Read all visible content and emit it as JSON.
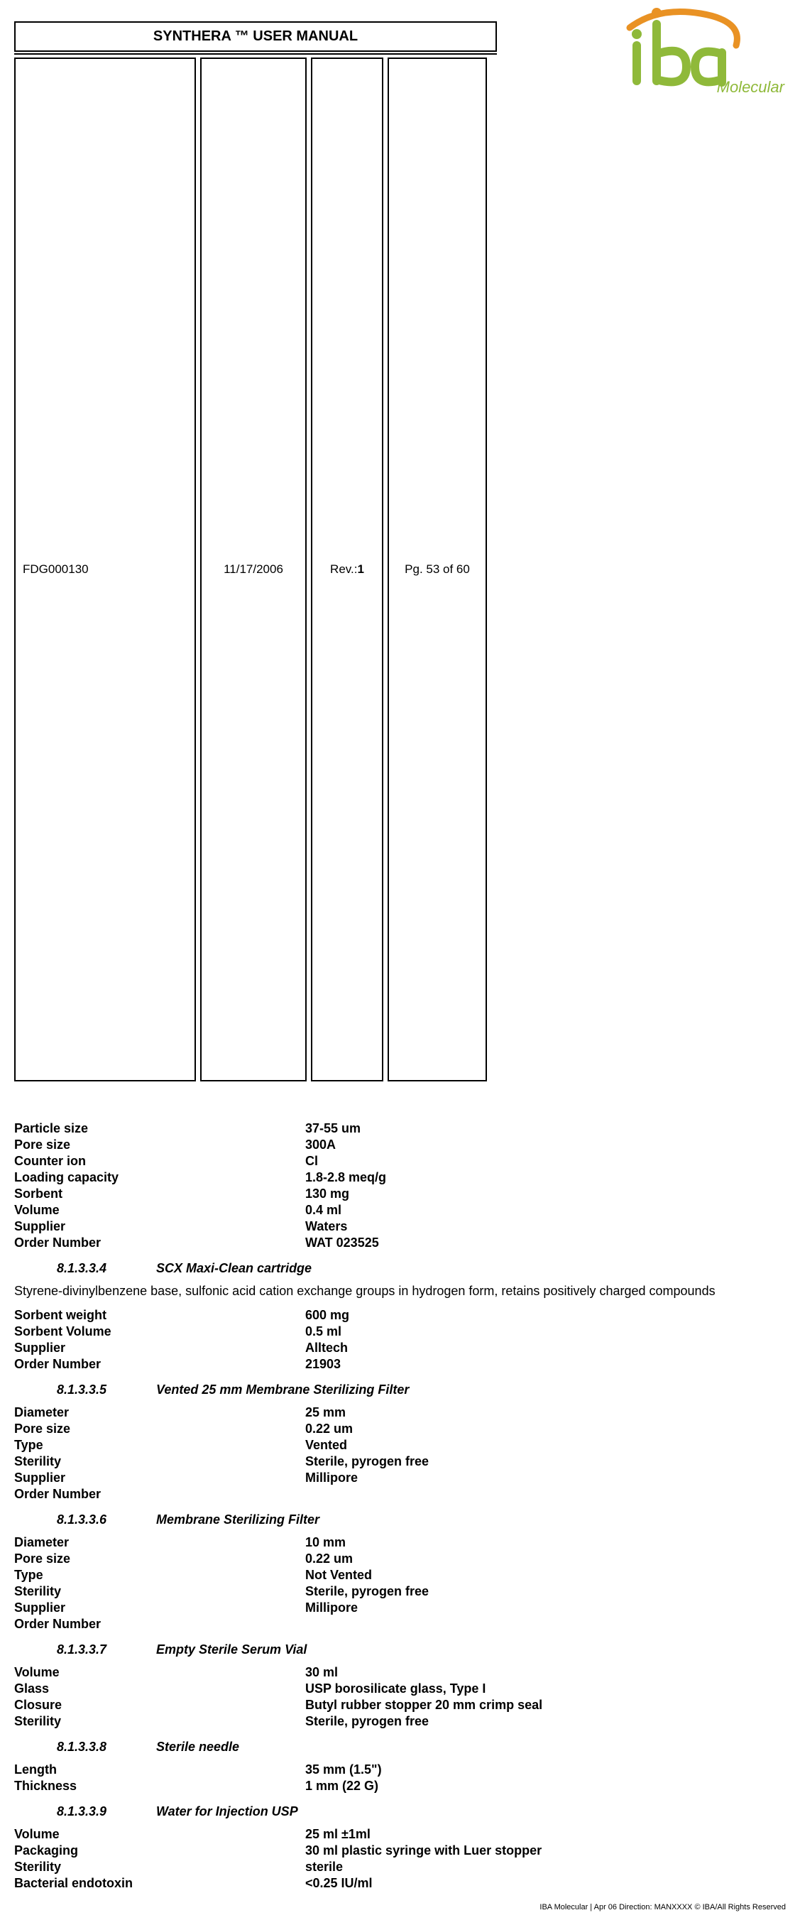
{
  "header": {
    "title": "SYNTHERA ™ USER MANUAL",
    "doc_number": "FDG000130",
    "date": "11/17/2006",
    "rev_label": "Rev.: ",
    "rev_number": "1",
    "page_label": "Pg. 53 of 60"
  },
  "logo": {
    "brand_word": "iba",
    "subtext": "Molecular",
    "swirl_color": "#e99224",
    "letter_color": "#8fb93a"
  },
  "sections": [
    {
      "specs": [
        {
          "label": "Particle size",
          "value": "37-55 um"
        },
        {
          "label": "Pore size",
          "value": "300A"
        },
        {
          "label": "Counter ion",
          "value": "Cl"
        },
        {
          "label": "Loading capacity",
          "value": "1.8-2.8 meq/g"
        },
        {
          "label": "Sorbent",
          "value": "130 mg"
        },
        {
          "label": "Volume",
          "value": "0.4 ml"
        },
        {
          "label": "Supplier",
          "value": "Waters"
        },
        {
          "label": "Order Number",
          "value": "WAT 023525"
        }
      ]
    },
    {
      "heading_num": "8.1.3.3.4",
      "heading_title": "SCX Maxi-Clean cartridge",
      "paragraph": "Styrene-divinylbenzene base, sulfonic acid cation exchange groups in hydrogen form, retains positively charged compounds",
      "specs": [
        {
          "label": "Sorbent weight",
          "value": "600 mg"
        },
        {
          "label": "Sorbent Volume",
          "value": "0.5 ml"
        },
        {
          "label": "Supplier",
          "value": "Alltech"
        },
        {
          "label": "Order Number",
          "value": "21903"
        }
      ]
    },
    {
      "heading_num": "8.1.3.3.5",
      "heading_title": "Vented 25 mm Membrane Sterilizing Filter",
      "specs": [
        {
          "label": "Diameter",
          "value": "25 mm"
        },
        {
          "label": "Pore size",
          "value": "0.22 um"
        },
        {
          "label": "Type",
          "value": "Vented"
        },
        {
          "label": "Sterility",
          "value": "Sterile, pyrogen free"
        },
        {
          "label": "Supplier",
          "value": "Millipore"
        },
        {
          "label": "Order Number",
          "value": ""
        }
      ]
    },
    {
      "heading_num": "8.1.3.3.6",
      "heading_title": " Membrane Sterilizing Filter",
      "specs": [
        {
          "label": "Diameter",
          "value": "10 mm"
        },
        {
          "label": "Pore size",
          "value": "0.22 um"
        },
        {
          "label": "Type",
          "value": "Not Vented"
        },
        {
          "label": "Sterility",
          "value": "Sterile, pyrogen free"
        },
        {
          "label": "Supplier",
          "value": "Millipore"
        },
        {
          "label": "Order Number",
          "value": ""
        }
      ]
    },
    {
      "heading_num": "8.1.3.3.7",
      "heading_title": "Empty Sterile Serum Vial",
      "specs": [
        {
          "label": "Volume",
          "value": "30 ml"
        },
        {
          "label": "Glass",
          "value": "USP borosilicate glass, Type I"
        },
        {
          "label": "Closure",
          "value": "Butyl rubber stopper 20 mm crimp seal"
        },
        {
          "label": "Sterility",
          "value": "Sterile, pyrogen free"
        }
      ]
    },
    {
      "heading_num": "8.1.3.3.8",
      "heading_title": "Sterile needle",
      "specs": [
        {
          "label": "Length",
          "value": "35 mm (1.5\")"
        },
        {
          "label": "Thickness",
          "value": "1 mm (22 G)"
        }
      ]
    },
    {
      "heading_num": "8.1.3.3.9",
      "heading_title": "Water for Injection USP",
      "specs": [
        {
          "label": "Volume",
          "value": "25 ml ±1ml"
        },
        {
          "label": "Packaging",
          "value": "30 ml plastic syringe with Luer stopper"
        },
        {
          "label": "Sterility",
          "value": "sterile"
        },
        {
          "label": "Bacterial endotoxin",
          "value": "<0.25 IU/ml"
        }
      ]
    }
  ],
  "footer": "IBA Molecular  |  Apr 06 Direction: MANXXXX © IBA/All Rights Reserved",
  "colors": {
    "text": "#000000",
    "background": "#ffffff",
    "logo_green": "#8fb93a",
    "logo_orange": "#e99224"
  },
  "typography": {
    "title_fontsize": 20,
    "body_fontsize": 18,
    "meta_fontsize": 17,
    "footer_fontsize": 11
  }
}
